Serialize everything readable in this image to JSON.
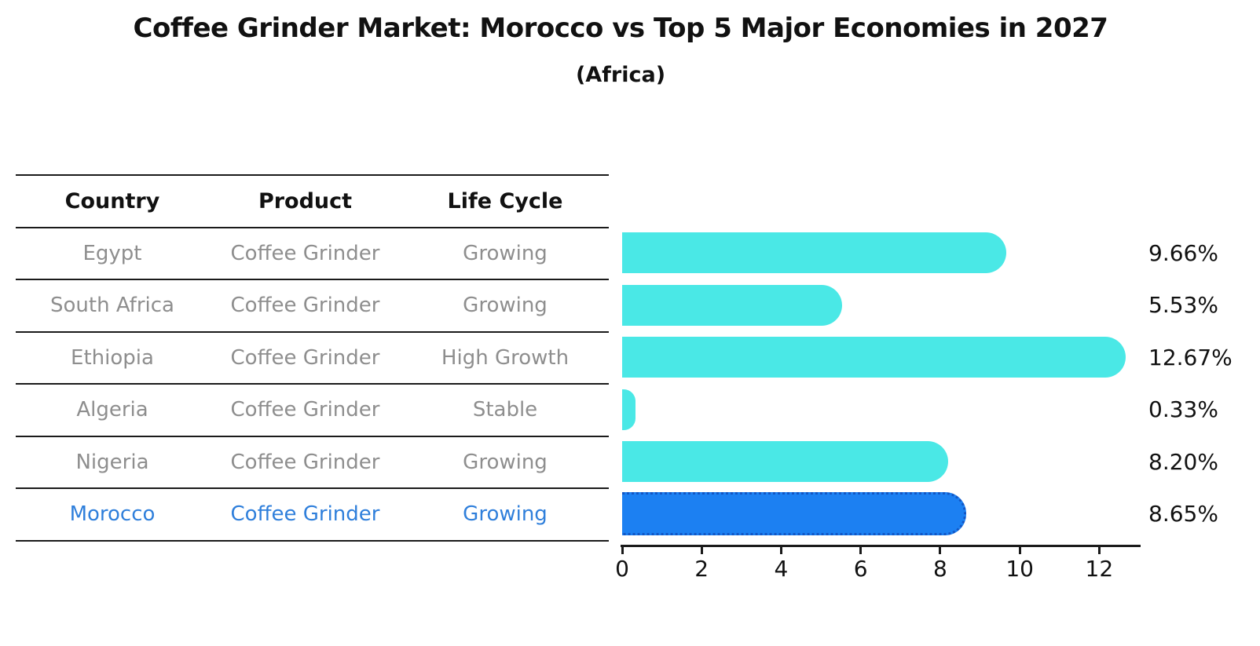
{
  "title": "Coffee Grinder Market: Morocco vs Top 5 Major Economies in 2027",
  "subtitle": "(Africa)",
  "table": {
    "headers": [
      "Country",
      "Product",
      "Life Cycle"
    ],
    "rows": [
      {
        "country": "Egypt",
        "product": "Coffee Grinder",
        "life_cycle": "Growing",
        "highlight": false
      },
      {
        "country": "South Africa",
        "product": "Coffee Grinder",
        "life_cycle": "Growing",
        "highlight": false
      },
      {
        "country": "Ethiopia",
        "product": "Coffee Grinder",
        "life_cycle": "High Growth",
        "highlight": false
      },
      {
        "country": "Algeria",
        "product": "Coffee Grinder",
        "life_cycle": "Stable",
        "highlight": false
      },
      {
        "country": "Nigeria",
        "product": "Coffee Grinder",
        "life_cycle": "Growing",
        "highlight": false
      },
      {
        "country": "Morocco",
        "product": "Coffee Grinder",
        "life_cycle": "Growing",
        "highlight": true
      }
    ]
  },
  "chart_data": {
    "type": "bar",
    "orientation": "horizontal",
    "title": "Coffee Grinder Market: Morocco vs Top 5 Major Economies in 2027",
    "subtitle": "(Africa)",
    "categories": [
      "Egypt",
      "South Africa",
      "Ethiopia",
      "Algeria",
      "Nigeria",
      "Morocco"
    ],
    "values": [
      9.66,
      5.53,
      12.67,
      0.33,
      8.2,
      8.65
    ],
    "value_labels": [
      "9.66%",
      "5.53%",
      "12.67%",
      "0.33%",
      "8.20%",
      "8.65%"
    ],
    "xticks": [
      0,
      2,
      4,
      6,
      8,
      10,
      12
    ],
    "xlim": [
      0,
      13
    ],
    "xlabel": "",
    "ylabel": "",
    "grid": false,
    "legend": false,
    "highlight_category": "Morocco",
    "colors": {
      "bar": "#4ae8e6",
      "highlight_bar": "#1c80f2",
      "highlight_border": "#1256c4",
      "highlight_text": "#2f7fdb",
      "text": "#111111",
      "muted_text": "#8e8e8e"
    }
  }
}
